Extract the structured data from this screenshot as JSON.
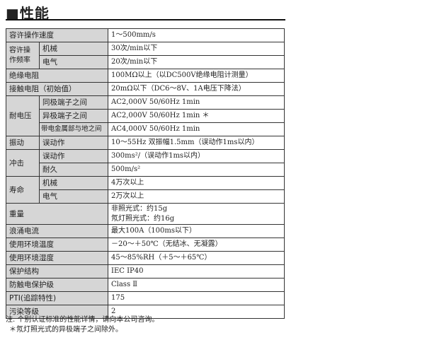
{
  "title": "■性能",
  "rows": {
    "speed": {
      "label": "容许操作速度",
      "value": "1～500mm/s"
    },
    "freq": {
      "label": "容许操作频率",
      "mech": "机械",
      "mech_value": "30次/min以下",
      "elec": "电气",
      "elec_value": "20次/min以下"
    },
    "insulation": {
      "label": "绝缘电阻",
      "value": "100MΩ以上（以DC500V绝缘电阻计测量）"
    },
    "contact": {
      "label": "接触电阻（初始值）",
      "value": "20mΩ以下（DC6～8V、1A电压下降法）"
    },
    "withstand": {
      "label": "耐电压",
      "a": "同极端子之间",
      "a_value": "AC2,000V  50/60Hz  1min",
      "b": "异极端子之间",
      "b_value": "AC2,000V  50/60Hz  1min  ＊",
      "c": "带电金属部与地之间",
      "c_value": "AC4,000V  50/60Hz  1min"
    },
    "vibration": {
      "label": "振动",
      "sub": "误动作",
      "value": "10～55Hz 双振幅1.5mm（误动作1ms以内）"
    },
    "shock": {
      "label": "冲击",
      "a": "误动作",
      "a_value": "300ms²/（误动作1ms以内）",
      "b": "耐久",
      "b_value": "500m/s²"
    },
    "life": {
      "label": "寿命",
      "mech": "机械",
      "mech_value": "4万次以上",
      "elec": "电气",
      "elec_value": "2万次以上"
    },
    "weight": {
      "label": "重量",
      "line1": "非照光式：约15g",
      "line2": "氖灯照光式：约16g"
    },
    "surge": {
      "label": "浪涌电流",
      "value": "最大100A（100ms以下）"
    },
    "temp": {
      "label": "使用环境温度",
      "value": "－20～＋50℃（无结冰、无凝露）"
    },
    "humidity": {
      "label": "使用环境湿度",
      "value": "45～85%RH（＋5～＋65℃）"
    },
    "protection": {
      "label": "保护结构",
      "value": "IEC IP40"
    },
    "shockprot": {
      "label": "防触电保护级",
      "value": "Class Ⅱ"
    },
    "pti": {
      "label": "PTI(追踪特性)",
      "value": "175"
    },
    "pollution": {
      "label": "污染等级",
      "value": "2"
    }
  },
  "notes": [
    "注. 个别认证标准的性能详情，请向本公司咨询。",
    "＊氖灯照光式的异极端子之间除外。"
  ]
}
